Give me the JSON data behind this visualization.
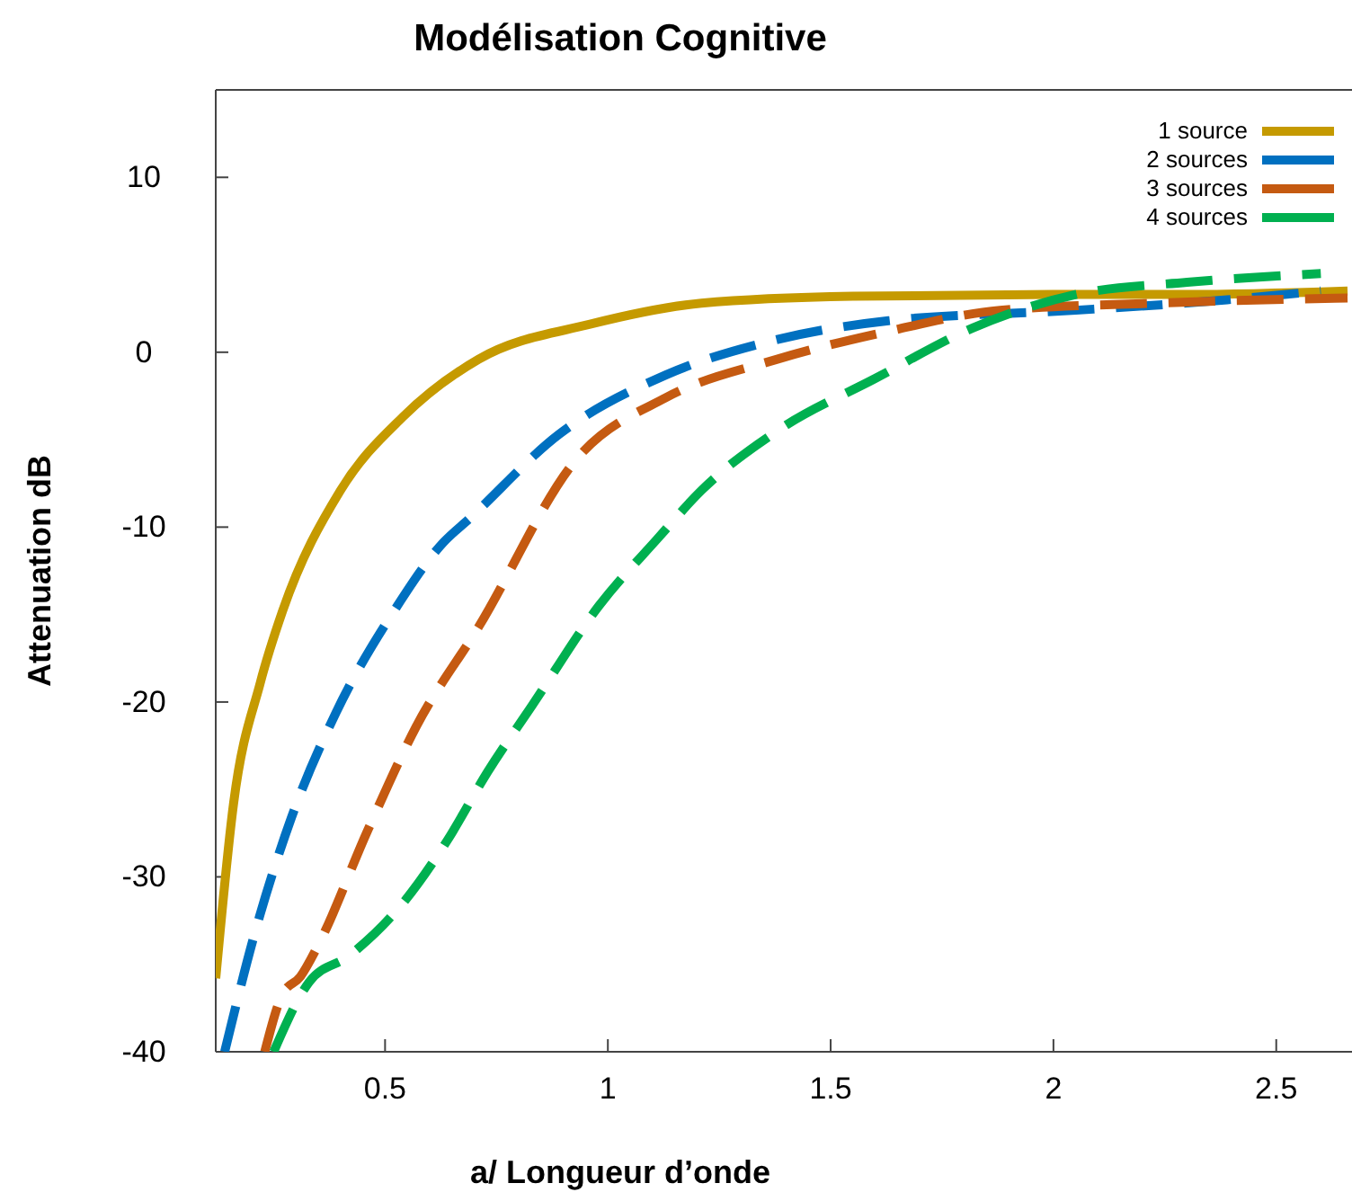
{
  "chart_data": {
    "type": "line",
    "title": "Modélisation Cognitive",
    "xlabel": "a/ Longueur d’onde",
    "ylabel": "Attenuation dB",
    "xlim": [
      0.12,
      2.67
    ],
    "ylim": [
      -40,
      15
    ],
    "xticks": [
      0.5,
      1,
      1.5,
      2,
      2.5
    ],
    "yticks": [
      -40,
      -30,
      -20,
      -10,
      0,
      10
    ],
    "grid": false,
    "legend": "top right",
    "marker": "none",
    "series": [
      {
        "name": "1 source",
        "color": "#c59a00",
        "line_style": "solid",
        "x": [
          0.12,
          0.16,
          0.22,
          0.27,
          0.4,
          0.54,
          0.71,
          0.96,
          1.21,
          1.55,
          2.0,
          2.3,
          2.66
        ],
        "values": [
          -35.8,
          -25.8,
          -18.9,
          -14.8,
          -7.9,
          -3.7,
          -0.4,
          1.6,
          2.8,
          3.2,
          3.3,
          3.3,
          3.5
        ]
      },
      {
        "name": "2 sources",
        "color": "#0070c0",
        "line_style": "dashed",
        "x": [
          0.14,
          0.21,
          0.29,
          0.39,
          0.52,
          0.63,
          0.69,
          0.89,
          1.13,
          1.36,
          1.63,
          2.05,
          2.39,
          2.6
        ],
        "values": [
          -40,
          -33,
          -26.6,
          -20.6,
          -14.8,
          -10.9,
          -9.5,
          -4.7,
          -1.3,
          0.6,
          1.8,
          2.4,
          3.0,
          3.5
        ]
      },
      {
        "name": "3 sources",
        "color": "#c55a11",
        "line_style": "dashed",
        "x": [
          0.23,
          0.27,
          0.31,
          0.35,
          0.46,
          0.57,
          0.71,
          0.93,
          1.13,
          1.38,
          1.63,
          1.88,
          2.22,
          2.66
        ],
        "values": [
          -40,
          -36.7,
          -35.7,
          -33.9,
          -27.4,
          -21.4,
          -15.7,
          -6.1,
          -2.6,
          -0.4,
          1.2,
          2.4,
          2.8,
          3.1
        ]
      },
      {
        "name": "4 sources",
        "color": "#00b050",
        "line_style": "dashed",
        "x": [
          0.25,
          0.33,
          0.42,
          0.54,
          0.64,
          0.73,
          0.83,
          0.98,
          1.11,
          1.21,
          1.38,
          1.6,
          1.82,
          2.05,
          2.3,
          2.6
        ],
        "values": [
          -40,
          -36,
          -34.5,
          -31.5,
          -27.9,
          -24,
          -20.2,
          -14.5,
          -10.7,
          -7.9,
          -4.5,
          -1.5,
          1.4,
          3.3,
          4.0,
          4.5
        ]
      }
    ]
  }
}
